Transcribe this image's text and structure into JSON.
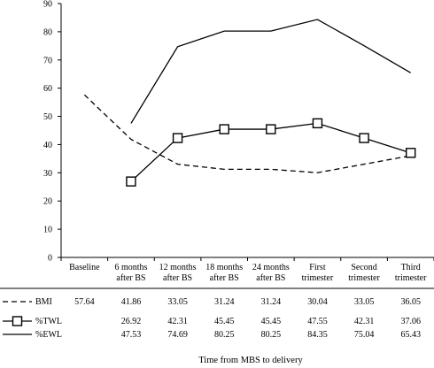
{
  "chart_data": {
    "type": "line",
    "xlabel": "Time from MBS to delivery",
    "ylim": [
      0,
      90
    ],
    "yticks": [
      0,
      10,
      20,
      30,
      40,
      50,
      60,
      70,
      80,
      90
    ],
    "categories": [
      [
        "Baseline"
      ],
      [
        "6 months",
        "after BS"
      ],
      [
        "12 months",
        "after BS"
      ],
      [
        "18 months",
        "after BS"
      ],
      [
        "24 months",
        "after BS"
      ],
      [
        "First",
        "trimester"
      ],
      [
        "Second",
        "trimester"
      ],
      [
        "Third",
        "trimester"
      ]
    ],
    "series": [
      {
        "name": "BMI",
        "style": "dashed",
        "marker": "none",
        "values": [
          57.64,
          41.86,
          33.05,
          31.24,
          31.24,
          30.04,
          33.05,
          36.05
        ],
        "labels": [
          "57.64",
          "41.86",
          "33.05",
          "31.24",
          "31.24",
          "30.04",
          "33.05",
          "36.05"
        ]
      },
      {
        "name": "%TWL",
        "style": "solid",
        "marker": "square",
        "values": [
          null,
          26.92,
          42.31,
          45.45,
          45.45,
          47.55,
          42.31,
          37.06
        ],
        "labels": [
          "",
          "26.92",
          "42.31",
          "45.45",
          "45.45",
          "47.55",
          "42.31",
          "37.06"
        ]
      },
      {
        "name": "%EWL",
        "style": "solid",
        "marker": "none",
        "values": [
          null,
          47.53,
          74.69,
          80.25,
          80.25,
          84.35,
          75.04,
          65.43
        ],
        "labels": [
          "",
          "47.53",
          "74.69",
          "80.25",
          "80.25",
          "84.35",
          "75.04",
          "65.43"
        ]
      }
    ],
    "colors": {
      "line": "#000000",
      "axis": "#000000",
      "marker_fill": "#ffffff"
    }
  }
}
